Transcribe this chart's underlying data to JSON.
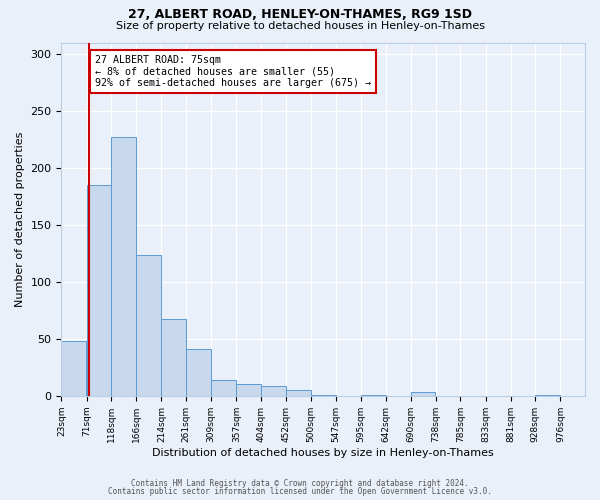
{
  "title": "27, ALBERT ROAD, HENLEY-ON-THAMES, RG9 1SD",
  "subtitle": "Size of property relative to detached houses in Henley-on-Thames",
  "xlabel": "Distribution of detached houses by size in Henley-on-Thames",
  "ylabel": "Number of detached properties",
  "bin_labels": [
    "23sqm",
    "71sqm",
    "118sqm",
    "166sqm",
    "214sqm",
    "261sqm",
    "309sqm",
    "357sqm",
    "404sqm",
    "452sqm",
    "500sqm",
    "547sqm",
    "595sqm",
    "642sqm",
    "690sqm",
    "738sqm",
    "785sqm",
    "833sqm",
    "881sqm",
    "928sqm",
    "976sqm"
  ],
  "bin_edges": [
    23,
    71,
    118,
    166,
    214,
    261,
    309,
    357,
    404,
    452,
    500,
    547,
    595,
    642,
    690,
    738,
    785,
    833,
    881,
    928,
    976
  ],
  "bin_width": 47,
  "bar_heights": [
    48,
    185,
    227,
    124,
    67,
    41,
    14,
    10,
    9,
    5,
    1,
    0,
    1,
    0,
    3,
    0,
    0,
    0,
    0,
    1,
    0
  ],
  "bar_color": "#c9d9ed",
  "bar_edge_color": "#5b9bd5",
  "background_color": "#eaf0f9",
  "property_line_x": 75,
  "annotation_text": "27 ALBERT ROAD: 75sqm\n← 8% of detached houses are smaller (55)\n92% of semi-detached houses are larger (675) →",
  "annotation_box_color": "#ffffff",
  "annotation_box_edge_color": "#cc0000",
  "red_line_color": "#cc0000",
  "ylim": [
    0,
    310
  ],
  "yticks": [
    0,
    50,
    100,
    150,
    200,
    250,
    300
  ],
  "title_fontsize": 9,
  "subtitle_fontsize": 8,
  "ylabel_fontsize": 8,
  "xlabel_fontsize": 8,
  "footer_line1": "Contains HM Land Registry data © Crown copyright and database right 2024.",
  "footer_line2": "Contains public sector information licensed under the Open Government Licence v3.0."
}
